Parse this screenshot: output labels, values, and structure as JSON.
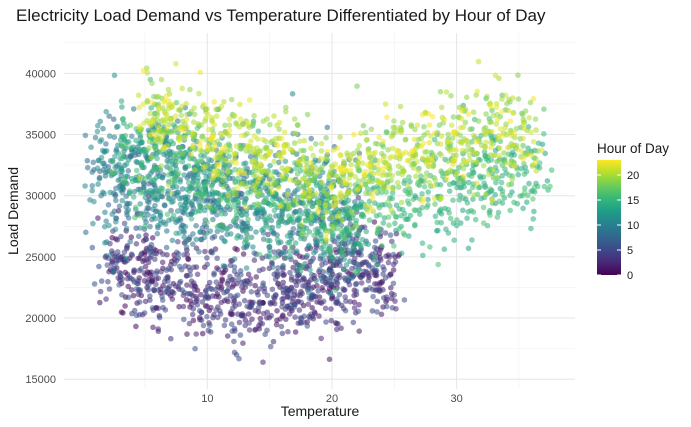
{
  "chart_data": {
    "type": "scatter",
    "title": "Electricity Load Demand vs Temperature Differentiated by Hour of Day",
    "xlabel": "Temperature",
    "ylabel": "Load Demand",
    "xlim": [
      -1.5,
      39.5
    ],
    "ylim": [
      14200,
      43300
    ],
    "x_ticks": [
      10,
      20,
      30
    ],
    "y_ticks": [
      15000,
      20000,
      25000,
      30000,
      35000,
      40000
    ],
    "grid": true,
    "color_by": "hour",
    "legend": {
      "title": "Hour of Day",
      "placement": "right",
      "ticks": [
        0,
        5,
        10,
        15,
        20
      ],
      "range": [
        0,
        23
      ]
    },
    "colormap": [
      "#440154",
      "#482878",
      "#3E4A89",
      "#31688E",
      "#26828E",
      "#1F9E89",
      "#35B779",
      "#6DCD59",
      "#B4DE2C",
      "#FDE725"
    ],
    "clusters": [
      {
        "hour_range": [
          0,
          6
        ],
        "x_range": [
          2,
          25
        ],
        "y_center_at_x": [
          [
            3,
            24000
          ],
          [
            13,
            21500
          ],
          [
            24,
            24000
          ]
        ],
        "y_spread": 3500
      },
      {
        "hour_range": [
          7,
          12
        ],
        "x_range": [
          1,
          22
        ],
        "y_center_at_x": [
          [
            1,
            32000
          ],
          [
            10,
            30000
          ],
          [
            22,
            28000
          ]
        ],
        "y_spread": 4500
      },
      {
        "hour_range": [
          13,
          17
        ],
        "x_range": [
          3,
          37
        ],
        "y_center_at_x": [
          [
            5,
            33000
          ],
          [
            20,
            28000
          ],
          [
            33,
            32000
          ]
        ],
        "y_spread": 4000
      },
      {
        "hour_range": [
          18,
          23
        ],
        "x_range": [
          5,
          36
        ],
        "y_center_at_x": [
          [
            8,
            36000
          ],
          [
            20,
            31000
          ],
          [
            32,
            35000
          ]
        ],
        "y_spread": 3500
      }
    ]
  }
}
